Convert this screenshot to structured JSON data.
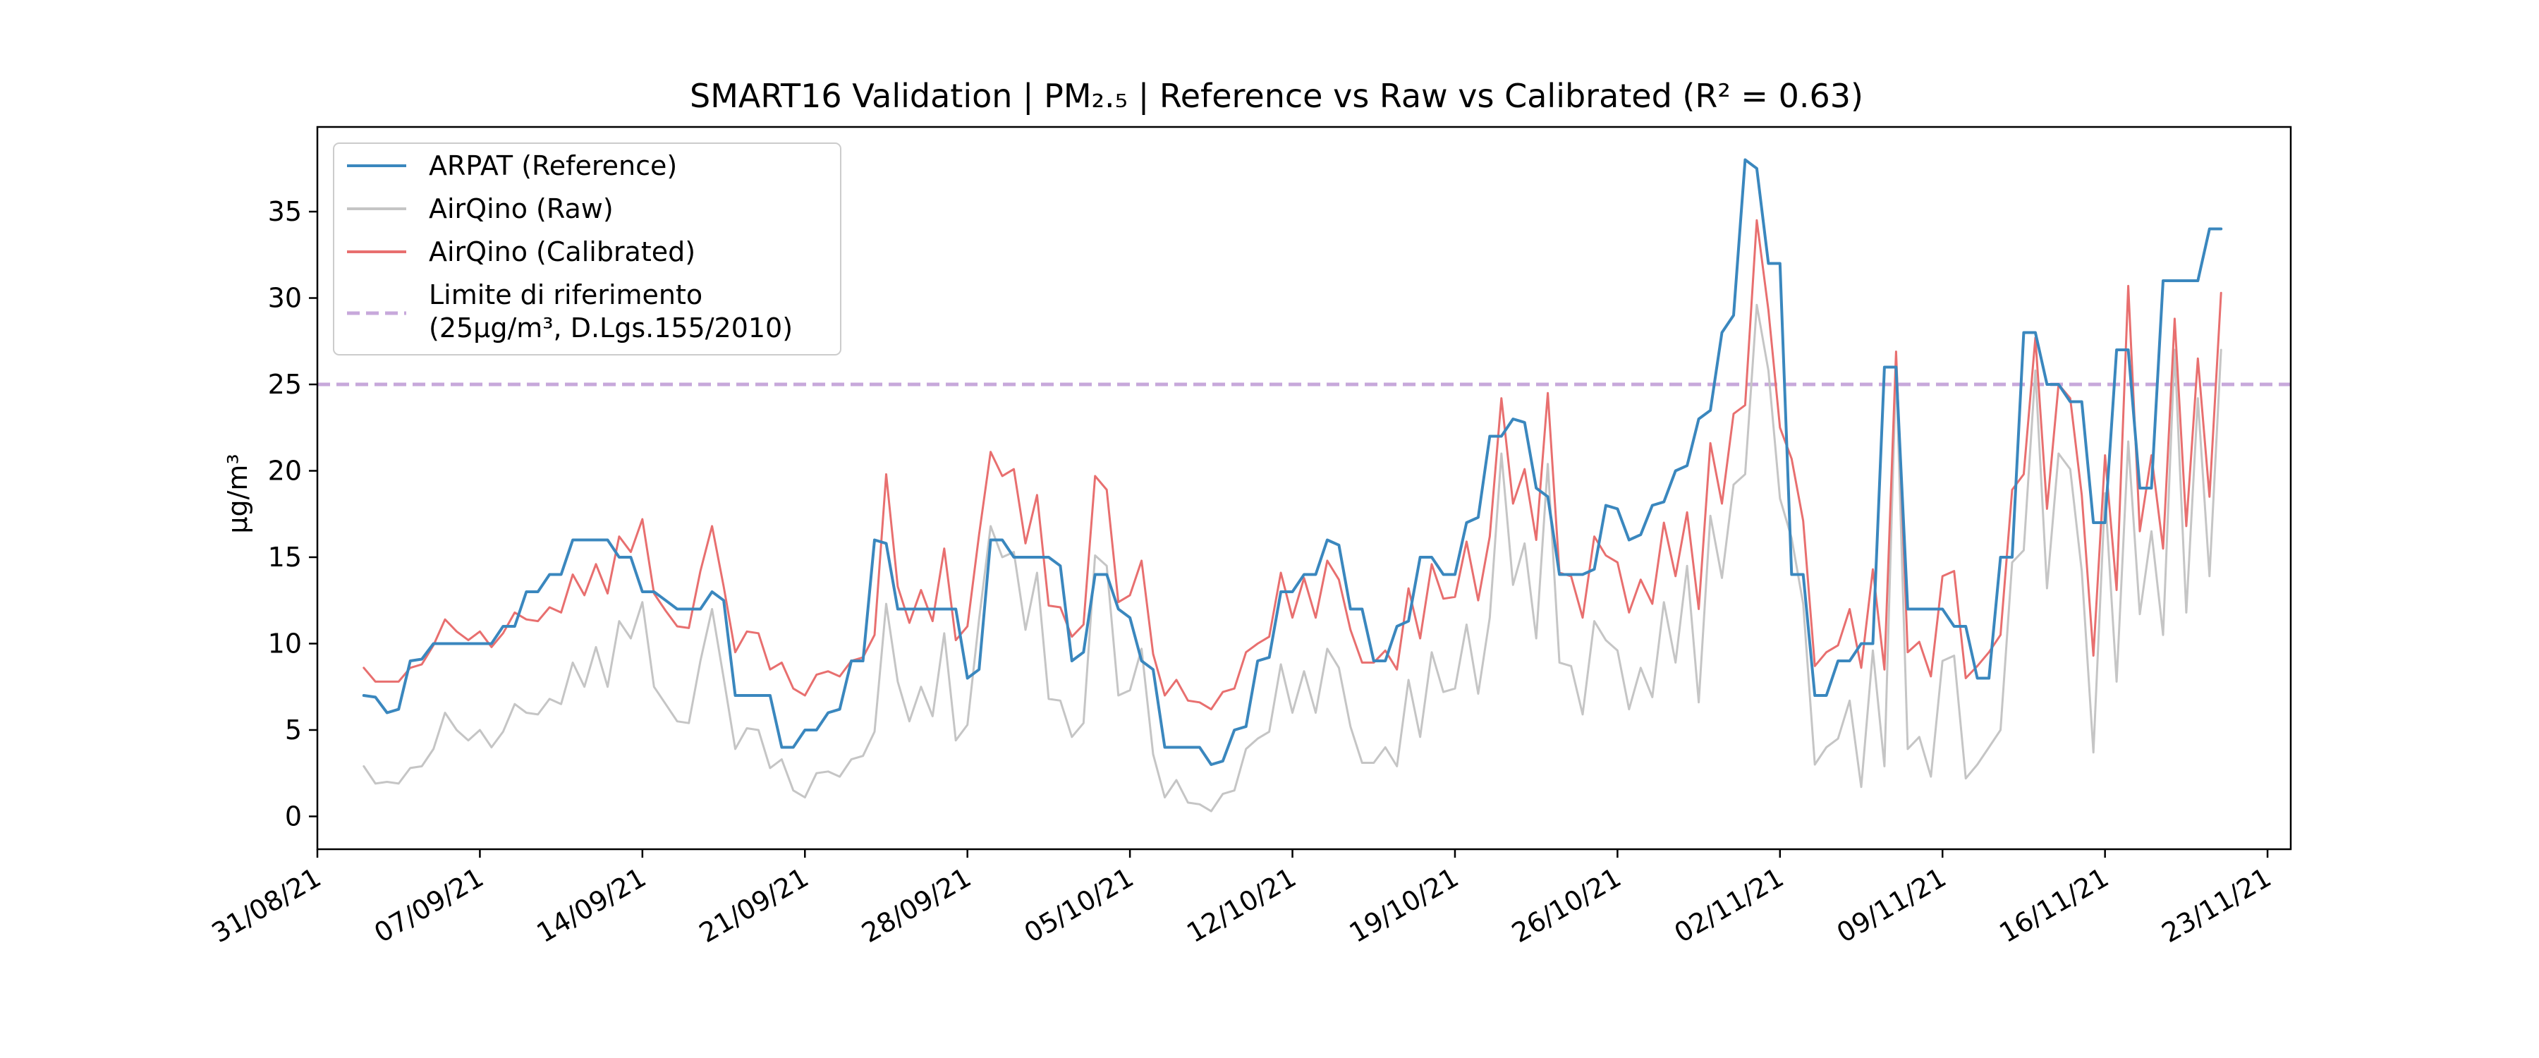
{
  "chart_data": {
    "type": "line",
    "title": "SMART16 Validation | PM₂.₅ | Reference vs Raw vs Calibrated (R² = 0.63)",
    "xlabel": "",
    "ylabel": "µg/m³",
    "x_start": "2021-09-02",
    "xlim": [
      "2021-08-31",
      "2021-11-24"
    ],
    "ylim": [
      -1.9,
      39.9
    ],
    "yticks": [
      0,
      5,
      10,
      15,
      20,
      25,
      30,
      35
    ],
    "xticks": [
      {
        "date": "2021-08-31",
        "label": "31/08/21"
      },
      {
        "date": "2021-09-07",
        "label": "07/09/21"
      },
      {
        "date": "2021-09-14",
        "label": "14/09/21"
      },
      {
        "date": "2021-09-21",
        "label": "21/09/21"
      },
      {
        "date": "2021-09-28",
        "label": "28/09/21"
      },
      {
        "date": "2021-10-05",
        "label": "05/10/21"
      },
      {
        "date": "2021-10-12",
        "label": "12/10/21"
      },
      {
        "date": "2021-10-19",
        "label": "19/10/21"
      },
      {
        "date": "2021-10-26",
        "label": "26/10/21"
      },
      {
        "date": "2021-11-02",
        "label": "02/11/21"
      },
      {
        "date": "2021-11-09",
        "label": "09/11/21"
      },
      {
        "date": "2021-11-16",
        "label": "16/11/21"
      },
      {
        "date": "2021-11-23",
        "label": "23/11/21"
      }
    ],
    "grid": false,
    "legend_position": "top-left",
    "reference_line": {
      "value": 25,
      "label_line1": "Limite di riferimento",
      "label_line2": "(25µg/m³, D.Lgs.155/2010)",
      "color": "#c7a8db",
      "style": "dashed"
    },
    "series": [
      {
        "name": "ARPAT (Reference)",
        "color": "#3a87be",
        "values": [
          7,
          6.9,
          6,
          6.2,
          9,
          9.1,
          10,
          10,
          10,
          10,
          10,
          10,
          11,
          11,
          13,
          13,
          14,
          14,
          16,
          16,
          16,
          16,
          15,
          15,
          13,
          13,
          12.5,
          12,
          12,
          12,
          13,
          12.5,
          7,
          7,
          7,
          7,
          4,
          4,
          5,
          5,
          6,
          6.2,
          9,
          9,
          16,
          15.8,
          12,
          12,
          12,
          12,
          12,
          12,
          8,
          8.5,
          16,
          16,
          15,
          15,
          15,
          15,
          14.5,
          9,
          9.5,
          14,
          14,
          12,
          11.5,
          9,
          8.5,
          4,
          4,
          4,
          4,
          3,
          3.2,
          5,
          5.2,
          9,
          9.2,
          13,
          13,
          14,
          14,
          16,
          15.7,
          12,
          12,
          9,
          9,
          11,
          11.3,
          15,
          15,
          14,
          14,
          17,
          17.3,
          22,
          22,
          23,
          22.8,
          19,
          18.5,
          14,
          14,
          14,
          14.3,
          18,
          17.8,
          16,
          16.3,
          18,
          18.2,
          20,
          20.3,
          23,
          23.5,
          28,
          29,
          38,
          37.5,
          32,
          32,
          14,
          14,
          7,
          7,
          9,
          9,
          10,
          10,
          26,
          26,
          12,
          12,
          12,
          12,
          11,
          11,
          8,
          8,
          15,
          15,
          28,
          28,
          25,
          25,
          24,
          24,
          17,
          17,
          27,
          27,
          19,
          19,
          31,
          31,
          31,
          31,
          34,
          34
        ]
      },
      {
        "name": "AirQino (Raw)",
        "color": "#c5c5c5",
        "values": [
          2.9,
          1.9,
          2,
          1.9,
          2.8,
          2.9,
          3.9,
          6,
          5,
          4.4,
          5,
          4,
          4.9,
          6.5,
          6,
          5.9,
          6.8,
          6.5,
          8.9,
          7.5,
          9.8,
          7.5,
          11.3,
          10.3,
          12.4,
          7.5,
          6.5,
          5.5,
          5.4,
          9,
          12,
          8,
          3.9,
          5.1,
          5,
          2.8,
          3.3,
          1.5,
          1.1,
          2.5,
          2.6,
          2.3,
          3.3,
          3.5,
          4.9,
          12.3,
          7.8,
          5.5,
          7.5,
          5.8,
          10.6,
          4.4,
          5.3,
          11.4,
          16.8,
          15,
          15.3,
          10.8,
          14.1,
          6.8,
          6.7,
          4.6,
          5.4,
          15.1,
          14.5,
          7,
          7.3,
          9.7,
          3.6,
          1.1,
          2.1,
          0.8,
          0.7,
          0.3,
          1.3,
          1.5,
          3.9,
          4.5,
          4.9,
          8.8,
          6,
          8.4,
          6,
          9.7,
          8.6,
          5.2,
          3.1,
          3.1,
          4,
          2.9,
          7.9,
          4.6,
          9.5,
          7.2,
          7.4,
          11.1,
          7.1,
          11.5,
          21,
          13.4,
          15.8,
          10.3,
          20.4,
          8.9,
          8.7,
          5.9,
          11.3,
          10.2,
          9.6,
          6.2,
          8.6,
          6.9,
          12.4,
          8.9,
          14.5,
          6.6,
          17.4,
          13.8,
          19.2,
          19.8,
          29.6,
          25.8,
          18.4,
          16.1,
          12.3,
          3,
          4,
          4.5,
          6.7,
          1.7,
          9.6,
          2.9,
          26,
          3.9,
          4.6,
          2.3,
          9,
          9.3,
          2.2,
          3,
          4,
          5,
          14.7,
          15.4,
          25.8,
          13.2,
          21,
          20.1,
          14.2,
          3.7,
          18.7,
          7.8,
          21.7,
          11.7,
          16.5,
          10.5,
          27,
          11.8,
          24.2,
          13.9,
          27
        ]
      },
      {
        "name": "AirQino (Calibrated)",
        "color": "#e86f6f",
        "values": [
          8.6,
          7.8,
          7.8,
          7.8,
          8.6,
          8.8,
          9.9,
          11.4,
          10.7,
          10.2,
          10.7,
          9.8,
          10.6,
          11.8,
          11.4,
          11.3,
          12.1,
          11.8,
          14,
          12.8,
          14.6,
          12.9,
          16.2,
          15.3,
          17.2,
          12.9,
          11.9,
          11,
          10.9,
          14.2,
          16.8,
          13.3,
          9.5,
          10.7,
          10.6,
          8.5,
          8.9,
          7.4,
          7,
          8.2,
          8.4,
          8.1,
          9,
          9.2,
          10.5,
          19.8,
          13.3,
          11.2,
          13.1,
          11.3,
          15.5,
          10.2,
          11,
          16.3,
          21.1,
          19.7,
          20.1,
          15.8,
          18.6,
          12.2,
          12.1,
          10.4,
          11.1,
          19.7,
          18.9,
          12.4,
          12.8,
          14.8,
          9.4,
          7,
          7.9,
          6.7,
          6.6,
          6.2,
          7.2,
          7.4,
          9.5,
          10,
          10.4,
          14.1,
          11.5,
          13.8,
          11.5,
          14.8,
          13.7,
          10.8,
          8.9,
          8.9,
          9.6,
          8.5,
          13.2,
          10.3,
          14.6,
          12.6,
          12.7,
          15.9,
          12.5,
          16.2,
          24.2,
          18.1,
          20.1,
          16,
          24.5,
          14.1,
          13.9,
          11.5,
          16.2,
          15.1,
          14.7,
          11.8,
          13.7,
          12.3,
          17,
          13.9,
          17.6,
          12,
          21.6,
          18.1,
          23.3,
          23.8,
          34.5,
          29.3,
          22.5,
          20.7,
          17.1,
          8.7,
          9.5,
          9.9,
          12,
          8.6,
          14.3,
          8.5,
          26.9,
          9.5,
          10.1,
          8.1,
          13.9,
          14.2,
          8,
          8.7,
          9.5,
          10.5,
          18.9,
          19.8,
          27.7,
          17.8,
          25,
          24.2,
          18.6,
          9.3,
          20.9,
          13.1,
          30.7,
          16.5,
          20.9,
          15.5,
          28.8,
          16.8,
          26.5,
          18.5,
          30.3
        ]
      }
    ]
  }
}
